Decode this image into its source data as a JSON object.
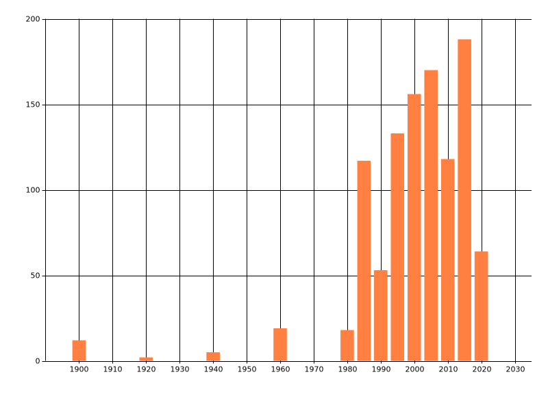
{
  "chart_data": {
    "type": "bar",
    "x": [
      1900,
      1920,
      1940,
      1960,
      1980,
      1985,
      1990,
      1995,
      2000,
      2005,
      2010,
      2015,
      2020
    ],
    "values": [
      12,
      2,
      5,
      19,
      18,
      117,
      53,
      133,
      156,
      170,
      118,
      188,
      64
    ],
    "color": "#ff8040",
    "xlim": [
      1890,
      2035
    ],
    "xticks": [
      1900,
      1910,
      1920,
      1930,
      1940,
      1950,
      1960,
      1970,
      1980,
      1990,
      2000,
      2010,
      2020,
      2030
    ],
    "ylim": [
      0,
      200
    ],
    "yticks": [
      0,
      50,
      100,
      150,
      200
    ],
    "grid": true
  }
}
